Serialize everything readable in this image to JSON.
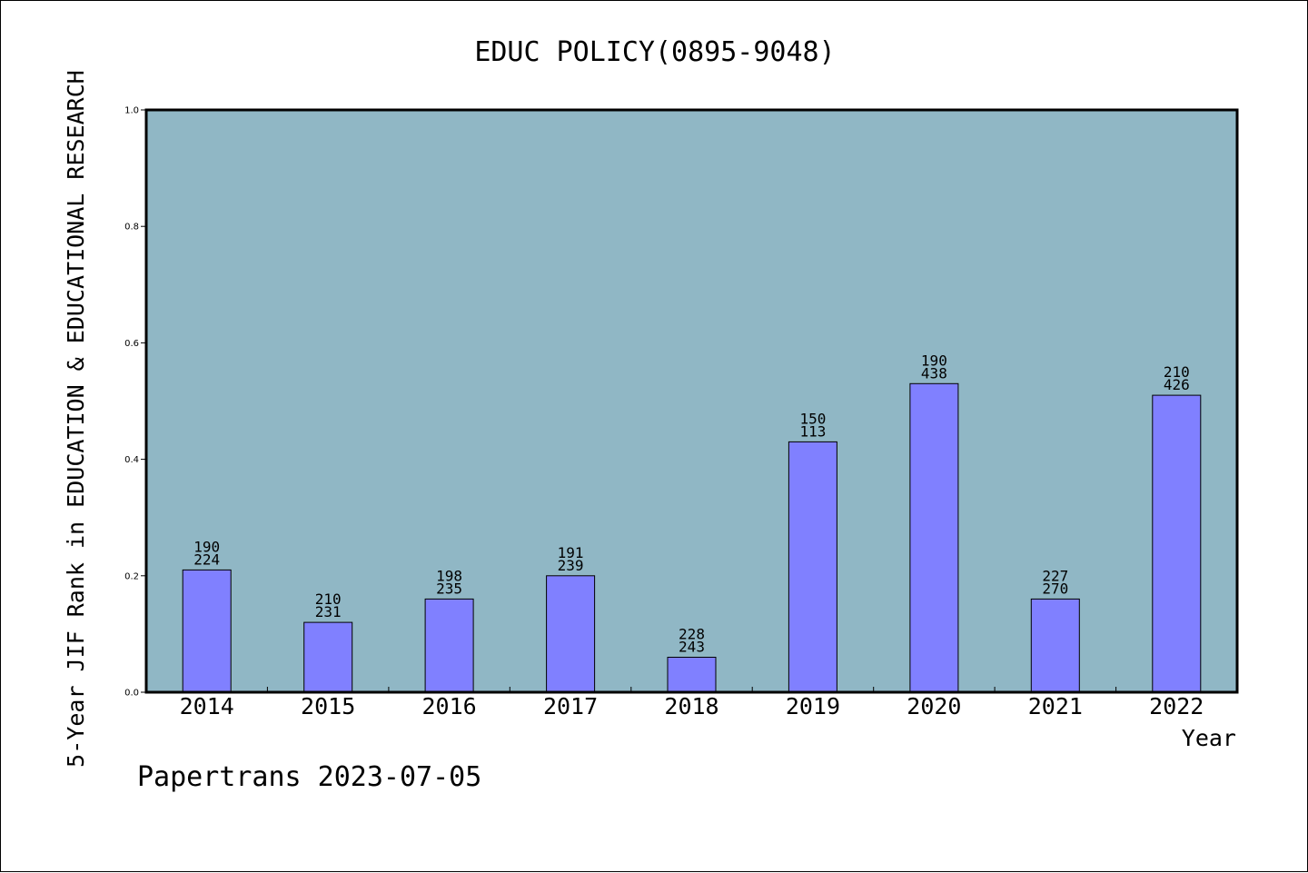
{
  "chart_data": {
    "type": "bar",
    "title": "EDUC POLICY(0895-9048)",
    "xlabel": "Year",
    "ylabel": "5-Year JIF Rank in EDUCATION & EDUCATIONAL RESEARCH",
    "ylim": [
      0,
      1.0
    ],
    "yticks": [
      "0.0",
      "0.2",
      "0.4",
      "0.6",
      "0.8",
      "1.0"
    ],
    "categories": [
      "2014",
      "2015",
      "2016",
      "2017",
      "2018",
      "2019",
      "2020",
      "2021",
      "2022"
    ],
    "values": [
      0.21,
      0.12,
      0.16,
      0.2,
      0.06,
      0.43,
      0.53,
      0.16,
      0.51
    ],
    "labels_top": [
      "190",
      "210",
      "198",
      "191",
      "228",
      "150",
      "190",
      "227",
      "210"
    ],
    "labels_bottom": [
      "224",
      "231",
      "235",
      "239",
      "243",
      "113",
      "438",
      "270",
      "426"
    ],
    "grid": false,
    "colors": {
      "plot_background": "#90b7c5",
      "bar_fill": "#8080ff",
      "bar_stroke": "#000000"
    }
  },
  "footer": "Papertrans 2023-07-05"
}
